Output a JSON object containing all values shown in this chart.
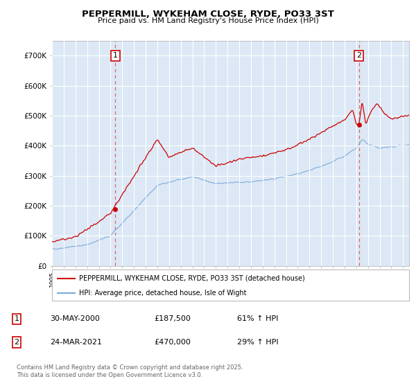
{
  "title": "PEPPERMILL, WYKEHAM CLOSE, RYDE, PO33 3ST",
  "subtitle": "Price paid vs. HM Land Registry's House Price Index (HPI)",
  "legend_line1": "PEPPERMILL, WYKEHAM CLOSE, RYDE, PO33 3ST (detached house)",
  "legend_line2": "HPI: Average price, detached house, Isle of Wight",
  "annotation1_label": "1",
  "annotation1_date": "30-MAY-2000",
  "annotation1_price": "£187,500",
  "annotation1_hpi": "61% ↑ HPI",
  "annotation2_label": "2",
  "annotation2_date": "24-MAR-2021",
  "annotation2_price": "£470,000",
  "annotation2_hpi": "29% ↑ HPI",
  "footer": "Contains HM Land Registry data © Crown copyright and database right 2025.\nThis data is licensed under the Open Government Licence v3.0.",
  "red_color": "#cc0000",
  "blue_color": "#7aaadd",
  "vline_color": "#dd4444",
  "background_color": "#dce8f5",
  "grid_color": "#ffffff",
  "ylim": [
    0,
    750000
  ],
  "yticks": [
    0,
    100000,
    200000,
    300000,
    400000,
    500000,
    600000,
    700000
  ],
  "ytick_labels": [
    "£0",
    "£100K",
    "£200K",
    "£300K",
    "£400K",
    "£500K",
    "£600K",
    "£700K"
  ],
  "sale1_x": 2000.42,
  "sale1_y": 187500,
  "sale2_x": 2021.23,
  "sale2_y": 470000,
  "xmin": 1995,
  "xmax": 2025.5
}
